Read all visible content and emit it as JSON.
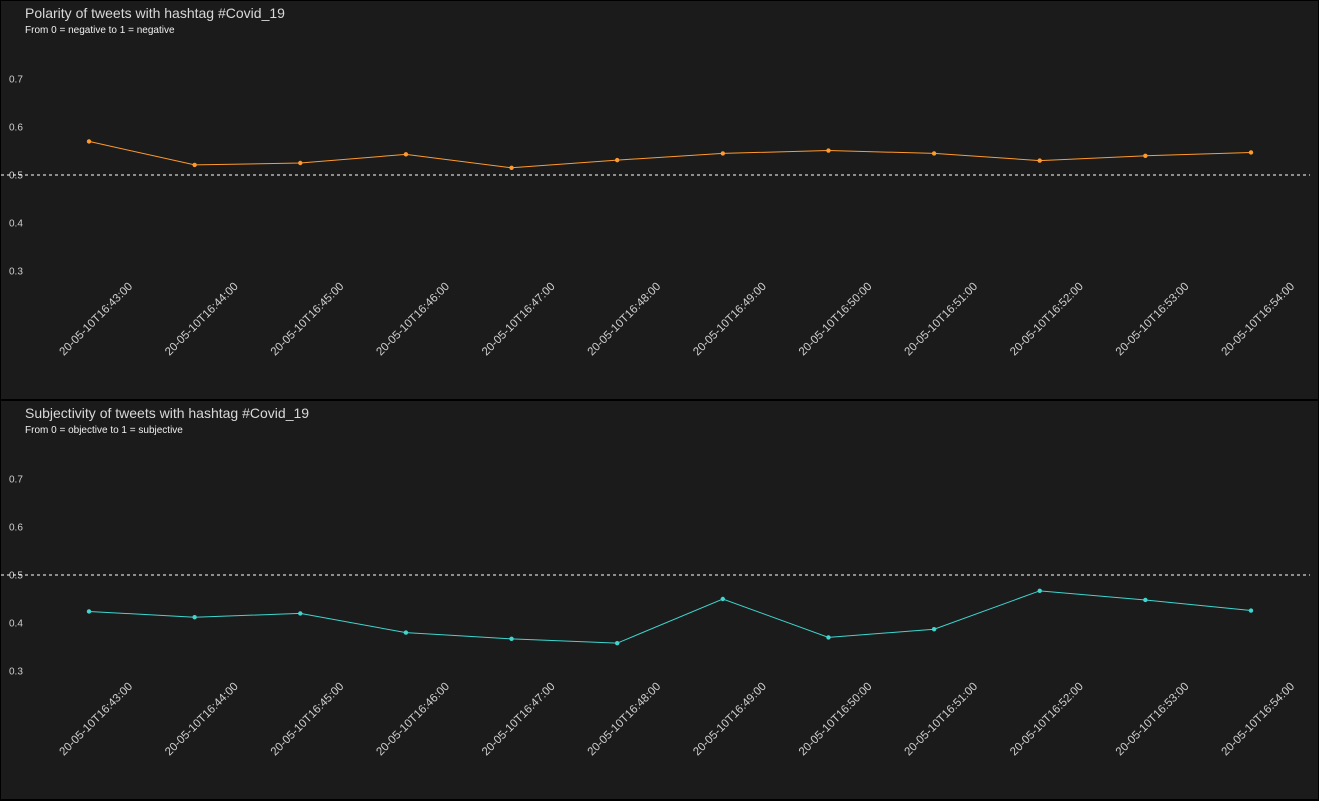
{
  "x_labels": [
    "20-05-10T16:43:00",
    "20-05-10T16:44:00",
    "20-05-10T16:45:00",
    "20-05-10T16:46:00",
    "20-05-10T16:47:00",
    "20-05-10T16:48:00",
    "20-05-10T16:49:00",
    "20-05-10T16:50:00",
    "20-05-10T16:51:00",
    "20-05-10T16:52:00",
    "20-05-10T16:53:00",
    "20-05-10T16:54:00"
  ],
  "chart_data": [
    {
      "type": "line",
      "title": "Polarity of tweets with hashtag #Covid_19",
      "subtitle": "From 0 = negative to 1 = negative",
      "categories": [
        "20-05-10T16:43:00",
        "20-05-10T16:44:00",
        "20-05-10T16:45:00",
        "20-05-10T16:46:00",
        "20-05-10T16:47:00",
        "20-05-10T16:48:00",
        "20-05-10T16:49:00",
        "20-05-10T16:50:00",
        "20-05-10T16:51:00",
        "20-05-10T16:52:00",
        "20-05-10T16:53:00",
        "20-05-10T16:54:00"
      ],
      "series": [
        {
          "values": [
            0.57,
            0.521,
            0.525,
            0.543,
            0.515,
            0.531,
            0.545,
            0.551,
            0.545,
            0.53,
            0.54,
            0.547
          ]
        }
      ],
      "yticks": [
        "0.7",
        "0.6",
        "0.5",
        "0.4",
        "0.3"
      ],
      "ylim": [
        0.3,
        0.7
      ],
      "reference_line": 0.5,
      "grid": false,
      "color": "#ff9a2e"
    },
    {
      "type": "line",
      "title": "Subjectivity of tweets with hashtag #Covid_19",
      "subtitle": "From 0 = objective to 1 = subjective",
      "categories": [
        "20-05-10T16:43:00",
        "20-05-10T16:44:00",
        "20-05-10T16:45:00",
        "20-05-10T16:46:00",
        "20-05-10T16:47:00",
        "20-05-10T16:48:00",
        "20-05-10T16:49:00",
        "20-05-10T16:50:00",
        "20-05-10T16:51:00",
        "20-05-10T16:52:00",
        "20-05-10T16:53:00",
        "20-05-10T16:54:00"
      ],
      "series": [
        {
          "values": [
            0.424,
            0.412,
            0.42,
            0.38,
            0.367,
            0.358,
            0.45,
            0.37,
            0.387,
            0.467,
            0.448,
            0.426
          ]
        }
      ],
      "yticks": [
        "0.7",
        "0.6",
        "0.5",
        "0.4",
        "0.3"
      ],
      "ylim": [
        0.3,
        0.7
      ],
      "reference_line": 0.5,
      "grid": false,
      "color": "#3fd6cf"
    }
  ]
}
